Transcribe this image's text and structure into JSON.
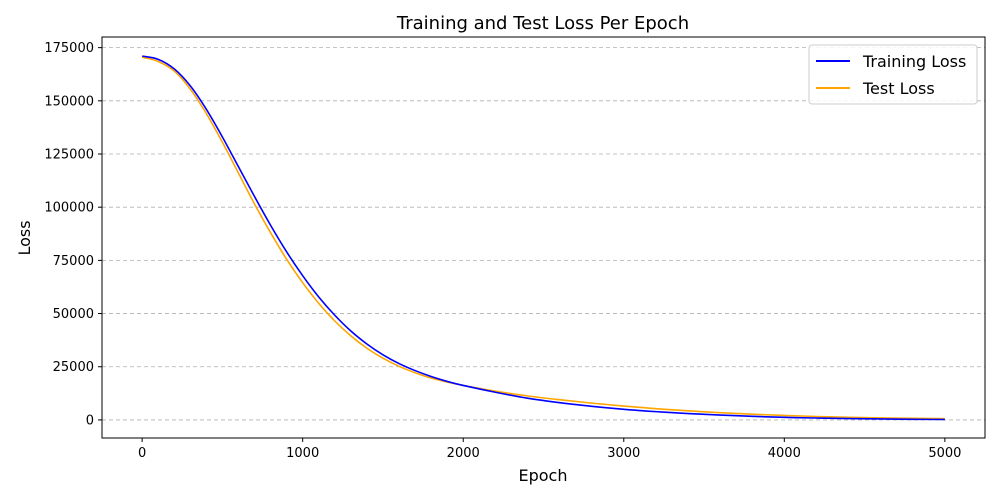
{
  "chart_data": {
    "type": "line",
    "title": "Training and Test Loss Per Epoch",
    "xlabel": "Epoch",
    "ylabel": "Loss",
    "xlim": [
      -250,
      5250
    ],
    "ylim": [
      -8500,
      180000
    ],
    "xticks": [
      0,
      1000,
      2000,
      3000,
      4000,
      5000
    ],
    "xtick_labels": [
      "0",
      "1000",
      "2000",
      "3000",
      "4000",
      "5000"
    ],
    "yticks": [
      0,
      25000,
      50000,
      75000,
      100000,
      125000,
      150000,
      175000
    ],
    "ytick_labels": [
      "0",
      "25000",
      "50000",
      "75000",
      "100000",
      "125000",
      "150000",
      "175000"
    ],
    "grid": "y-dashed",
    "legend_position": "top-right",
    "x": [
      0,
      100,
      200,
      300,
      400,
      500,
      600,
      700,
      800,
      900,
      1000,
      1100,
      1200,
      1300,
      1400,
      1500,
      1600,
      1700,
      1800,
      1900,
      2000,
      2200,
      2400,
      2600,
      2800,
      3000,
      3200,
      3400,
      3600,
      3800,
      4000,
      4200,
      4400,
      4600,
      4800,
      5000
    ],
    "series": [
      {
        "name": "Training Loss",
        "color": "#0000ff",
        "values": [
          171000,
          169500,
          165000,
          157000,
          146000,
          133000,
          119000,
          105000,
          91500,
          79000,
          67800,
          57800,
          49200,
          41800,
          35700,
          30600,
          26500,
          23200,
          20400,
          18100,
          16200,
          13000,
          10200,
          8100,
          6400,
          5000,
          3900,
          3000,
          2300,
          1700,
          1200,
          900,
          650,
          450,
          300,
          200
        ]
      },
      {
        "name": "Test Loss",
        "color": "#ffa500",
        "values": [
          170500,
          168500,
          164000,
          155500,
          144000,
          130500,
          116000,
          101500,
          88000,
          75500,
          64500,
          54800,
          46500,
          39500,
          33700,
          29000,
          25200,
          22200,
          19700,
          17800,
          16200,
          13500,
          11300,
          9500,
          7900,
          6500,
          5300,
          4300,
          3400,
          2700,
          2100,
          1600,
          1250,
          950,
          750,
          600
        ]
      }
    ]
  }
}
